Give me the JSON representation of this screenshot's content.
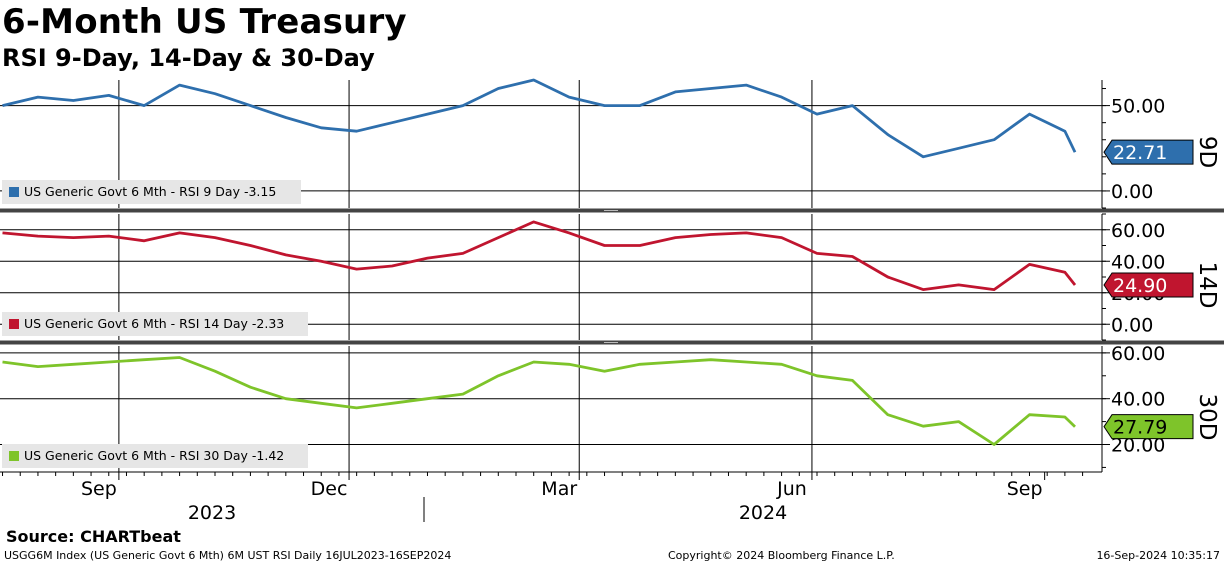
{
  "title": "6-Month US Treasury",
  "subtitle": "RSI 9-Day, 14-Day & 30-Day",
  "source": "Source: CHARTbeat",
  "footer": {
    "left": "USGG6M Index (US Generic Govt 6 Mth) 6M UST RSI  Daily 16JUL2023-16SEP2024",
    "center": "Copyright© 2024 Bloomberg Finance L.P.",
    "right": "16-Sep-2024 10:35:17"
  },
  "chart_data": [
    {
      "type": "line",
      "panel": "9D",
      "legend": "US Generic Govt 6 Mth - RSI 9 Day -3.15",
      "last_value_label": "22.71",
      "color": "#2e6fad",
      "ylim": [
        -10,
        65
      ],
      "yticks": [
        "0.00",
        "50.00"
      ],
      "x": [
        "2023-07-17",
        "2023-07-31",
        "2023-08-14",
        "2023-08-28",
        "2023-09-11",
        "2023-09-25",
        "2023-10-09",
        "2023-10-23",
        "2023-11-06",
        "2023-11-20",
        "2023-12-04",
        "2023-12-18",
        "2024-01-01",
        "2024-01-15",
        "2024-01-29",
        "2024-02-12",
        "2024-02-26",
        "2024-03-11",
        "2024-03-25",
        "2024-04-08",
        "2024-04-22",
        "2024-05-06",
        "2024-05-20",
        "2024-06-03",
        "2024-06-17",
        "2024-07-01",
        "2024-07-15",
        "2024-07-29",
        "2024-08-12",
        "2024-08-26",
        "2024-09-09",
        "2024-09-13"
      ],
      "y": [
        50,
        55,
        53,
        56,
        50,
        62,
        57,
        50,
        43,
        37,
        35,
        40,
        45,
        50,
        60,
        65,
        55,
        50,
        50,
        58,
        60,
        62,
        55,
        45,
        50,
        33,
        20,
        25,
        30,
        45,
        35,
        22.71
      ]
    },
    {
      "type": "line",
      "panel": "14D",
      "legend": "US Generic Govt 6 Mth - RSI 14 Day -2.33",
      "last_value_label": "24.90",
      "color": "#c0152f",
      "ylim": [
        -10,
        70
      ],
      "yticks": [
        "0.00",
        "20.00",
        "40.00",
        "60.00"
      ],
      "x": [
        "2023-07-17",
        "2023-07-31",
        "2023-08-14",
        "2023-08-28",
        "2023-09-11",
        "2023-09-25",
        "2023-10-09",
        "2023-10-23",
        "2023-11-06",
        "2023-11-20",
        "2023-12-04",
        "2023-12-18",
        "2024-01-01",
        "2024-01-15",
        "2024-01-29",
        "2024-02-12",
        "2024-02-26",
        "2024-03-11",
        "2024-03-25",
        "2024-04-08",
        "2024-04-22",
        "2024-05-06",
        "2024-05-20",
        "2024-06-03",
        "2024-06-17",
        "2024-07-01",
        "2024-07-15",
        "2024-07-29",
        "2024-08-12",
        "2024-08-26",
        "2024-09-09",
        "2024-09-13"
      ],
      "y": [
        58,
        56,
        55,
        56,
        53,
        58,
        55,
        50,
        44,
        40,
        35,
        37,
        42,
        45,
        55,
        65,
        58,
        50,
        50,
        55,
        57,
        58,
        55,
        45,
        43,
        30,
        22,
        25,
        22,
        38,
        33,
        24.9
      ]
    },
    {
      "type": "line",
      "panel": "30D",
      "legend": "US Generic Govt 6 Mth - RSI 30 Day -1.42",
      "last_value_label": "27.79",
      "color": "#7ec42a",
      "ylim": [
        8,
        63
      ],
      "yticks": [
        "20.00",
        "40.00",
        "60.00"
      ],
      "x": [
        "2023-07-17",
        "2023-07-31",
        "2023-08-14",
        "2023-08-28",
        "2023-09-11",
        "2023-09-25",
        "2023-10-09",
        "2023-10-23",
        "2023-11-06",
        "2023-11-20",
        "2023-12-04",
        "2023-12-18",
        "2024-01-01",
        "2024-01-15",
        "2024-01-29",
        "2024-02-12",
        "2024-02-26",
        "2024-03-11",
        "2024-03-25",
        "2024-04-08",
        "2024-04-22",
        "2024-05-06",
        "2024-05-20",
        "2024-06-03",
        "2024-06-17",
        "2024-07-01",
        "2024-07-15",
        "2024-07-29",
        "2024-08-12",
        "2024-08-26",
        "2024-09-09",
        "2024-09-13"
      ],
      "y": [
        56,
        54,
        55,
        56,
        57,
        58,
        52,
        45,
        40,
        38,
        36,
        38,
        40,
        42,
        50,
        56,
        55,
        52,
        55,
        56,
        57,
        56,
        55,
        50,
        48,
        33,
        28,
        30,
        20,
        33,
        32,
        27.79
      ]
    }
  ],
  "x_axis": {
    "months": [
      {
        "label": "Sep",
        "date": "2023-09-01"
      },
      {
        "label": "Dec",
        "date": "2023-12-01"
      },
      {
        "label": "Mar",
        "date": "2024-03-01"
      },
      {
        "label": "Jun",
        "date": "2024-06-01"
      },
      {
        "label": "Sep",
        "date": "2024-09-01"
      }
    ],
    "years": [
      {
        "label": "2023"
      },
      {
        "label": "2024"
      }
    ]
  }
}
